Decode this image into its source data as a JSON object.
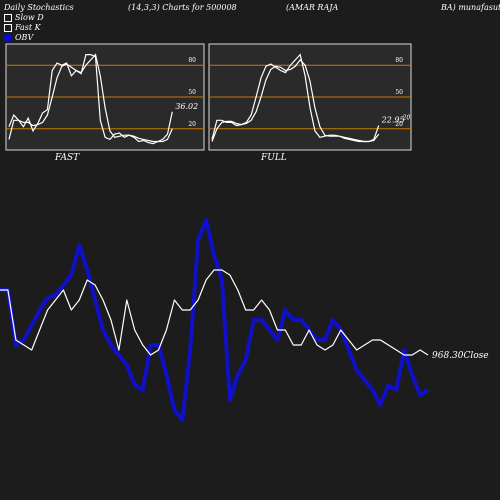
{
  "header": {
    "left": "Daily Stochastics",
    "params": "(14,3,3) Charts for 500008",
    "company": "(AMAR RAJA",
    "right": "BA) munafasutra"
  },
  "legend": [
    {
      "label": "Slow  D",
      "color": "#ffffff"
    },
    {
      "label": "Fast K",
      "color": "#ffffff"
    },
    {
      "label": "OBV",
      "color": "#0a0ad8"
    }
  ],
  "colors": {
    "background": "#1c1c1c",
    "panel": "#2a2a2a",
    "grid": "#c87800",
    "line": "#ffffff",
    "obv": "#1010c8"
  },
  "chart_data": [
    {
      "type": "line",
      "title": "FAST",
      "ylim": [
        0,
        100
      ],
      "yticks": [
        20,
        50,
        80
      ],
      "value_label": "36.02",
      "series": [
        {
          "name": "Fast K",
          "values": [
            22,
            33,
            28,
            22,
            30,
            18,
            25,
            35,
            38,
            75,
            82,
            80,
            82,
            70,
            75,
            72,
            90,
            90,
            88,
            28,
            12,
            10,
            15,
            16,
            12,
            14,
            12,
            8,
            9,
            7,
            6,
            8,
            10,
            15,
            36
          ]
        },
        {
          "name": "Slow D",
          "values": [
            10,
            28,
            28,
            26,
            26,
            23,
            24,
            26,
            33,
            50,
            68,
            79,
            81,
            78,
            75,
            73,
            80,
            85,
            90,
            70,
            40,
            18,
            12,
            13,
            14,
            14,
            13,
            11,
            10,
            9,
            8,
            8,
            8,
            10,
            20
          ]
        }
      ]
    },
    {
      "type": "line",
      "title": "FULL",
      "ylim": [
        0,
        100
      ],
      "yticks": [
        20,
        50,
        80
      ],
      "value_label": "22.95",
      "value_label2": "20",
      "series": [
        {
          "name": "Full K",
          "values": [
            10,
            28,
            28,
            26,
            26,
            23,
            24,
            26,
            33,
            50,
            68,
            79,
            81,
            78,
            75,
            73,
            80,
            85,
            90,
            70,
            40,
            18,
            12,
            13,
            14,
            14,
            13,
            11,
            10,
            9,
            8,
            8,
            8,
            10,
            23
          ]
        },
        {
          "name": "Full D",
          "values": [
            8,
            20,
            26,
            27,
            27,
            25,
            24,
            25,
            28,
            36,
            50,
            66,
            76,
            79,
            78,
            75,
            76,
            79,
            85,
            80,
            65,
            40,
            22,
            14,
            13,
            13,
            13,
            12,
            11,
            10,
            9,
            8,
            8,
            9,
            15
          ]
        }
      ]
    },
    {
      "type": "line",
      "value_label": "968.30Close",
      "series": [
        {
          "name": "OBV",
          "values": [
            290,
            290,
            345,
            340,
            325,
            310,
            298,
            295,
            285,
            275,
            245,
            270,
            300,
            330,
            345,
            355,
            365,
            385,
            390,
            345,
            345,
            375,
            410,
            420,
            350,
            240,
            220,
            255,
            280,
            400,
            375,
            360,
            320,
            320,
            330,
            340,
            310,
            320,
            320,
            330,
            340,
            340,
            320,
            330,
            350,
            370,
            380,
            390,
            405,
            385,
            390,
            350,
            375,
            395,
            390
          ]
        },
        {
          "name": "Close",
          "values": [
            290,
            290,
            340,
            345,
            350,
            330,
            310,
            300,
            290,
            310,
            300,
            280,
            285,
            300,
            320,
            350,
            300,
            330,
            345,
            355,
            350,
            330,
            300,
            310,
            310,
            300,
            280,
            270,
            270,
            275,
            290,
            310,
            310,
            300,
            310,
            330,
            330,
            345,
            345,
            330,
            345,
            350,
            345,
            330,
            340,
            350,
            345,
            340,
            340,
            345,
            350,
            355,
            355,
            350,
            355
          ]
        }
      ]
    }
  ]
}
